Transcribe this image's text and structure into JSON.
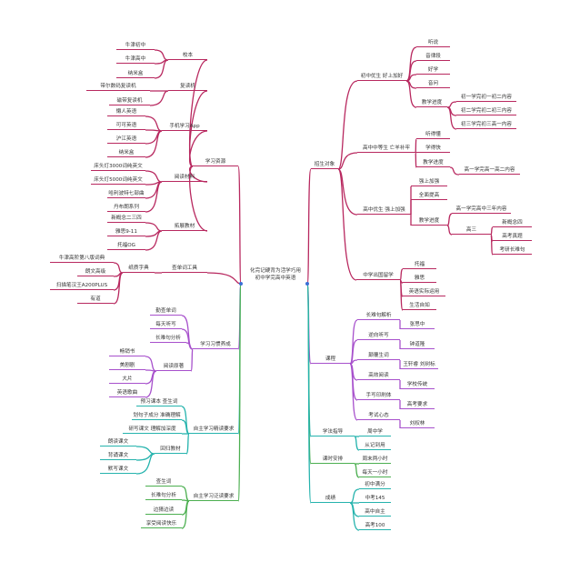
{
  "center": {
    "line1": "化完记硬背为活学巧用",
    "line2": "初中学完高中英语"
  },
  "colors": {
    "crimson": "#b8285f",
    "purple": "#a750cc",
    "teal": "#25b3ad",
    "green": "#4caf50",
    "center_dot": "#3b6fd6"
  },
  "nodes": [
    {
      "id": "zyzy",
      "label": "学习资源",
      "parent": "center",
      "color": "crimson"
    },
    {
      "id": "xb",
      "label": "校本",
      "parent": "zyzy",
      "color": "crimson"
    },
    {
      "id": "xb1",
      "label": "牛津初中",
      "parent": "xb",
      "color": "crimson"
    },
    {
      "id": "xb2",
      "label": "牛津高中",
      "parent": "xb",
      "color": "crimson"
    },
    {
      "id": "xb3",
      "label": "纳米盒",
      "parent": "xb",
      "color": "crimson"
    },
    {
      "id": "fdj",
      "label": "复读机",
      "parent": "zyzy",
      "color": "crimson"
    },
    {
      "id": "fdj1",
      "label": "带尔数码复读机",
      "parent": "fdj",
      "color": "crimson"
    },
    {
      "id": "fdj2",
      "label": "磁带复读机",
      "parent": "fdj",
      "color": "crimson"
    },
    {
      "id": "app",
      "label": "手机学习App",
      "parent": "zyzy",
      "color": "crimson"
    },
    {
      "id": "app1",
      "label": "懒人英语",
      "parent": "app",
      "color": "crimson"
    },
    {
      "id": "app2",
      "label": "可可英语",
      "parent": "app",
      "color": "crimson"
    },
    {
      "id": "app3",
      "label": "沪江英语",
      "parent": "app",
      "color": "crimson"
    },
    {
      "id": "app4",
      "label": "纳米盒",
      "parent": "app",
      "color": "crimson"
    },
    {
      "id": "ydcl",
      "label": "阅读材料",
      "parent": "zyzy",
      "color": "crimson"
    },
    {
      "id": "ydcl1",
      "label": "床头灯3000词纯英文",
      "parent": "ydcl",
      "color": "crimson"
    },
    {
      "id": "ydcl2",
      "label": "床头灯5000词纯英文",
      "parent": "ydcl",
      "color": "crimson"
    },
    {
      "id": "ydcl3",
      "label": "哈利波特七部曲",
      "parent": "ydcl",
      "color": "crimson"
    },
    {
      "id": "ydcl4",
      "label": "丹布朗系列",
      "parent": "ydcl",
      "color": "crimson"
    },
    {
      "id": "tzjc",
      "label": "拓展教材",
      "parent": "zyzy",
      "color": "crimson"
    },
    {
      "id": "tzjc1",
      "label": "新概念二三四",
      "parent": "tzjc",
      "color": "crimson"
    },
    {
      "id": "tzjc2",
      "label": "雅思9-11",
      "parent": "tzjc",
      "color": "crimson"
    },
    {
      "id": "tzjc3",
      "label": "托福OG",
      "parent": "tzjc",
      "color": "crimson"
    },
    {
      "id": "cdc",
      "label": "查单词工具",
      "parent": "center",
      "color": "crimson"
    },
    {
      "id": "zzzd",
      "label": "纸质字典",
      "parent": "cdc",
      "color": "crimson"
    },
    {
      "id": "zzzd1",
      "label": "牛津高阶第八版词典",
      "parent": "zzzd",
      "color": "crimson"
    },
    {
      "id": "zzzd2",
      "label": "朗文高级",
      "parent": "zzzd",
      "color": "crimson"
    },
    {
      "id": "zzzd3",
      "label": "扫描笔汉王A200PLUS",
      "parent": "zzzd",
      "color": "crimson"
    },
    {
      "id": "zzzd4",
      "label": "有道",
      "parent": "zzzd",
      "color": "crimson"
    },
    {
      "id": "xgyc",
      "label": "学习习惯养成",
      "parent": "center",
      "color": "purple"
    },
    {
      "id": "xg1",
      "label": "勤查单词",
      "parent": "xgyc",
      "color": "purple"
    },
    {
      "id": "xg2",
      "label": "每天听写",
      "parent": "xgyc",
      "color": "purple"
    },
    {
      "id": "xg3",
      "label": "长难句分析",
      "parent": "xgyc",
      "color": "purple"
    },
    {
      "id": "ydyz",
      "label": "阅读原著",
      "parent": "xgyc",
      "color": "purple"
    },
    {
      "id": "yd1",
      "label": "畅销书",
      "parent": "ydyz",
      "color": "purple"
    },
    {
      "id": "yd2",
      "label": "美剧剧",
      "parent": "ydyz",
      "color": "purple"
    },
    {
      "id": "yd3",
      "label": "大片",
      "parent": "ydyz",
      "color": "purple"
    },
    {
      "id": "yd4",
      "label": "英语歌曲",
      "parent": "ydyz",
      "color": "purple"
    },
    {
      "id": "jdyq",
      "label": "自主学习精读要求",
      "parent": "center",
      "color": "teal"
    },
    {
      "id": "jd1",
      "label": "预习课本 查生词",
      "parent": "jdyq",
      "color": "teal"
    },
    {
      "id": "jd2",
      "label": "划句子成分 准确理解",
      "parent": "jdyq",
      "color": "teal"
    },
    {
      "id": "jd3",
      "label": "研写课文 理解加深度",
      "parent": "jdyq",
      "color": "teal"
    },
    {
      "id": "hgjc",
      "label": "回归教材",
      "parent": "jdyq",
      "color": "teal"
    },
    {
      "id": "hg1",
      "label": "朗读课文",
      "parent": "hgjc",
      "color": "teal"
    },
    {
      "id": "hg2",
      "label": "背诵课文",
      "parent": "hgjc",
      "color": "teal"
    },
    {
      "id": "hg3",
      "label": "默写课文",
      "parent": "hgjc",
      "color": "teal"
    },
    {
      "id": "fdyq",
      "label": "自主学习泛读要求",
      "parent": "center",
      "color": "green"
    },
    {
      "id": "fd1",
      "label": "查生词",
      "parent": "fdyq",
      "color": "green"
    },
    {
      "id": "fd2",
      "label": "长难句分析",
      "parent": "fdyq",
      "color": "green"
    },
    {
      "id": "fd3",
      "label": "边猜边读",
      "parent": "fdyq",
      "color": "green"
    },
    {
      "id": "fd4",
      "label": "享受阅读快乐",
      "parent": "fdyq",
      "color": "green"
    },
    {
      "id": "zsdx",
      "label": "招生对象",
      "parent": "center",
      "color": "crimson"
    },
    {
      "id": "cz",
      "label": "初中优生 好上加好",
      "parent": "zsdx",
      "color": "crimson"
    },
    {
      "id": "cz1",
      "label": "听说",
      "parent": "cz",
      "color": "crimson"
    },
    {
      "id": "cz2",
      "label": "音律段",
      "parent": "cz",
      "color": "crimson"
    },
    {
      "id": "cz3",
      "label": "好学",
      "parent": "cz",
      "color": "crimson"
    },
    {
      "id": "cz4",
      "label": "音问",
      "parent": "cz",
      "color": "crimson"
    },
    {
      "id": "cz5",
      "label": "教学进度",
      "parent": "cz",
      "color": "crimson"
    },
    {
      "id": "cz51",
      "label": "初一学完初一初二内容",
      "parent": "cz5",
      "color": "crimson"
    },
    {
      "id": "cz52",
      "label": "初二学完初二初三内容",
      "parent": "cz5",
      "color": "crimson"
    },
    {
      "id": "cz53",
      "label": "初三学完初三高一内容",
      "parent": "cz5",
      "color": "crimson"
    },
    {
      "id": "gzz",
      "label": "高中中等生 亡羊补牢",
      "parent": "zsdx",
      "color": "crimson"
    },
    {
      "id": "gzz1",
      "label": "听得懂",
      "parent": "gzz",
      "color": "crimson"
    },
    {
      "id": "gzz2",
      "label": "学得快",
      "parent": "gzz",
      "color": "crimson"
    },
    {
      "id": "gzz3",
      "label": "教学进度",
      "parent": "gzz",
      "color": "crimson"
    },
    {
      "id": "gzz31",
      "label": "高一学完高一高二内容",
      "parent": "gzz3",
      "color": "crimson"
    },
    {
      "id": "gzy",
      "label": "高中优生 强上加强",
      "parent": "zsdx",
      "color": "crimson"
    },
    {
      "id": "gzy1",
      "label": "强上加强",
      "parent": "gzy",
      "color": "crimson"
    },
    {
      "id": "gzy2",
      "label": "全面提高",
      "parent": "gzy",
      "color": "crimson"
    },
    {
      "id": "gzy3",
      "label": "教学进度",
      "parent": "gzy",
      "color": "crimson"
    },
    {
      "id": "gzy31",
      "label": "高一学完高中三年内容",
      "parent": "gzy3",
      "color": "crimson"
    },
    {
      "id": "gzy32",
      "label": "高三",
      "parent": "gzy3",
      "color": "crimson"
    },
    {
      "id": "gs1",
      "label": "新概念四",
      "parent": "gzy32",
      "color": "crimson"
    },
    {
      "id": "gs2",
      "label": "高考真题",
      "parent": "gzy32",
      "color": "crimson"
    },
    {
      "id": "gs3",
      "label": "考研长难句",
      "parent": "gzy32",
      "color": "crimson"
    },
    {
      "id": "cg",
      "label": "中学出国留学",
      "parent": "zsdx",
      "color": "crimson"
    },
    {
      "id": "cg1",
      "label": "托福",
      "parent": "cg",
      "color": "crimson"
    },
    {
      "id": "cg2",
      "label": "雅思",
      "parent": "cg",
      "color": "crimson"
    },
    {
      "id": "cg3",
      "label": "英语实际运用",
      "parent": "cg",
      "color": "crimson"
    },
    {
      "id": "cg4",
      "label": "生活自如",
      "parent": "cg",
      "color": "crimson"
    },
    {
      "id": "kc",
      "label": "课程",
      "parent": "center",
      "color": "purple"
    },
    {
      "id": "kc1",
      "label": "长难句解析",
      "parent": "kc",
      "color": "purple"
    },
    {
      "id": "kc11",
      "label": "张思中",
      "parent": "kc1",
      "color": "purple"
    },
    {
      "id": "kc2",
      "label": "逆向听写",
      "parent": "kc",
      "color": "purple"
    },
    {
      "id": "kc21",
      "label": "钟道隆",
      "parent": "kc2",
      "color": "purple"
    },
    {
      "id": "kc3",
      "label": "颠覆生词",
      "parent": "kc",
      "color": "purple"
    },
    {
      "id": "kc31",
      "label": "王轩睿 刘树标",
      "parent": "kc3",
      "color": "purple"
    },
    {
      "id": "kc4",
      "label": "高效阅读",
      "parent": "kc",
      "color": "purple"
    },
    {
      "id": "kc41",
      "label": "学校传统",
      "parent": "kc4",
      "color": "purple"
    },
    {
      "id": "kc5",
      "label": "手写印刷体",
      "parent": "kc",
      "color": "purple"
    },
    {
      "id": "kc51",
      "label": "高考要求",
      "parent": "kc5",
      "color": "purple"
    },
    {
      "id": "kc6",
      "label": "考试心态",
      "parent": "kc",
      "color": "purple"
    },
    {
      "id": "kc61",
      "label": "刘权林",
      "parent": "kc6",
      "color": "purple"
    },
    {
      "id": "xfzd",
      "label": "学法指导",
      "parent": "center",
      "color": "teal"
    },
    {
      "id": "xf1",
      "label": "周中学",
      "parent": "xfzd",
      "color": "teal"
    },
    {
      "id": "xf2",
      "label": "从记到用",
      "parent": "xfzd",
      "color": "teal"
    },
    {
      "id": "ksap",
      "label": "课时安排",
      "parent": "center",
      "color": "green"
    },
    {
      "id": "ks1",
      "label": "周末两小时",
      "parent": "ksap",
      "color": "green"
    },
    {
      "id": "ks2",
      "label": "每天一小时",
      "parent": "ksap",
      "color": "green"
    },
    {
      "id": "cj",
      "label": "成绩",
      "parent": "center",
      "color": "teal"
    },
    {
      "id": "cj1",
      "label": "初中满分",
      "parent": "cj",
      "color": "teal"
    },
    {
      "id": "cj2",
      "label": "中考145",
      "parent": "cj",
      "color": "teal"
    },
    {
      "id": "cj3",
      "label": "高中自主",
      "parent": "cj",
      "color": "teal"
    },
    {
      "id": "cj4",
      "label": "高考100",
      "parent": "cj",
      "color": "teal"
    }
  ]
}
